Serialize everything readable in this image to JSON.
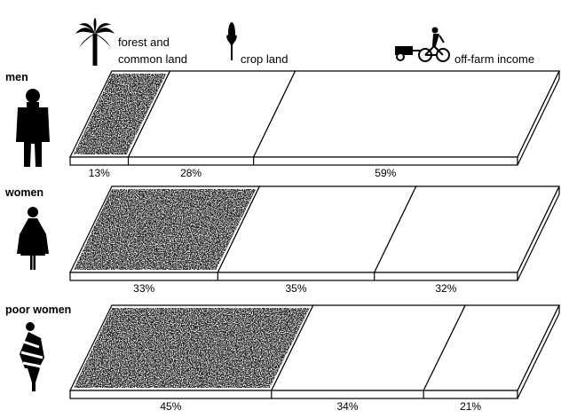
{
  "legend": {
    "forest": "forest and common land",
    "forest_line1": "forest and",
    "forest_line2": "common land",
    "crop": "crop land",
    "offfarm": "off-farm income"
  },
  "icons": {
    "forest": "palm-tree-icon",
    "crop": "crop-stalk-icon",
    "offfarm": "bicycle-cart-icon",
    "men": "man-figure-icon",
    "women": "woman-figure-icon",
    "poor_women": "poor-woman-figure-icon"
  },
  "colors": {
    "ink": "#000000",
    "paper": "#ffffff",
    "stipple": "#1a1a1a"
  },
  "chart_data": {
    "type": "bar",
    "stacked": true,
    "orientation": "horizontal",
    "units": "%",
    "categories": [
      "men",
      "women",
      "poor women"
    ],
    "series": [
      {
        "name": "forest and common land",
        "values": [
          13,
          33,
          45
        ]
      },
      {
        "name": "crop land",
        "values": [
          28,
          35,
          34
        ]
      },
      {
        "name": "off-farm income",
        "values": [
          59,
          32,
          21
        ]
      }
    ],
    "value_labels": [
      [
        "13%",
        "28%",
        "59%"
      ],
      [
        "33%",
        "35%",
        "32%"
      ],
      [
        "45%",
        "34%",
        "21%"
      ]
    ]
  }
}
